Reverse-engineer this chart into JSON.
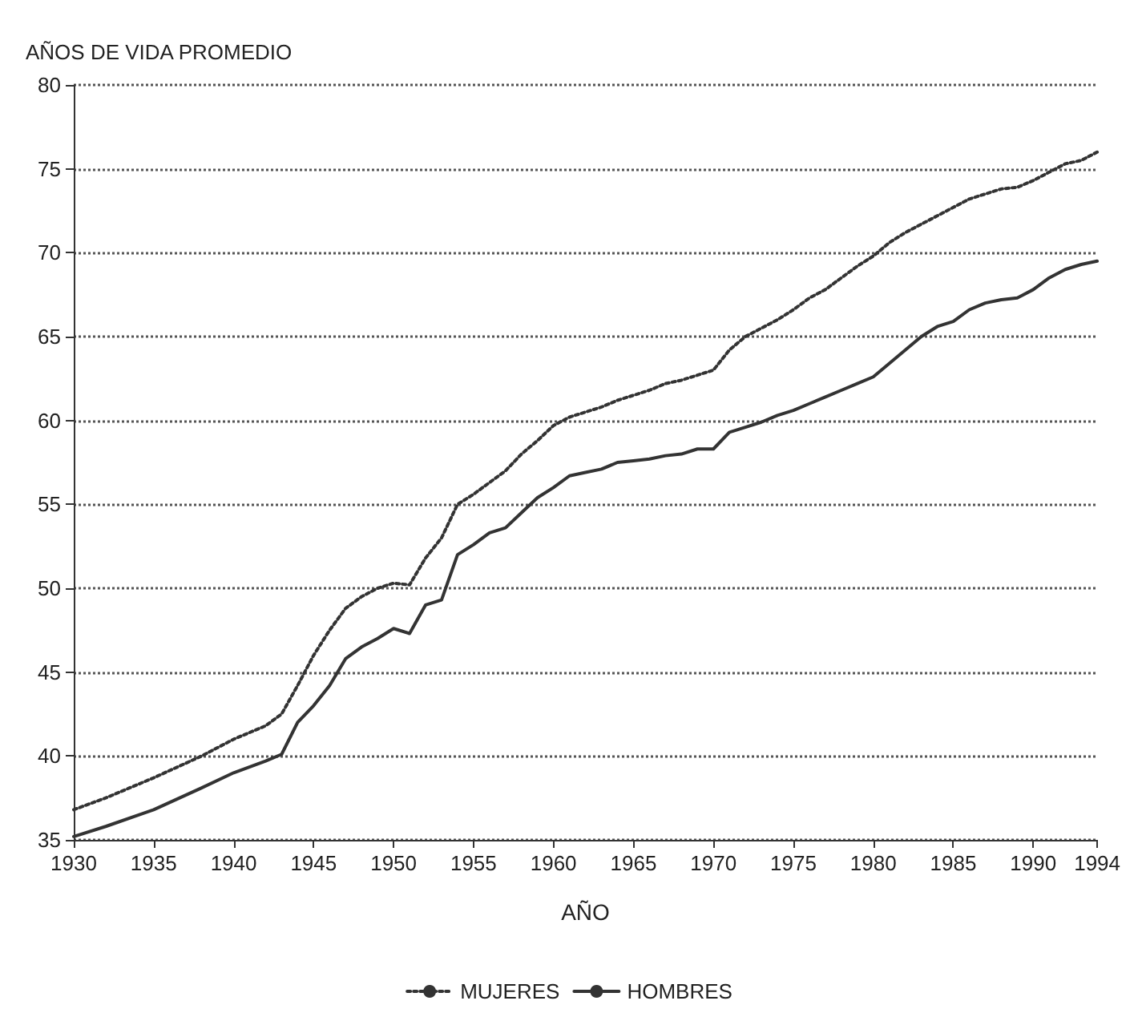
{
  "chart_data": {
    "type": "line",
    "ylabel": "AÑOS DE VIDA PROMEDIO",
    "xlabel": "AÑO",
    "x": [
      1930,
      1932,
      1935,
      1938,
      1940,
      1942,
      1943,
      1944,
      1945,
      1946,
      1947,
      1948,
      1949,
      1950,
      1951,
      1952,
      1953,
      1954,
      1955,
      1956,
      1957,
      1958,
      1959,
      1960,
      1961,
      1962,
      1963,
      1964,
      1965,
      1966,
      1967,
      1968,
      1969,
      1970,
      1971,
      1972,
      1973,
      1974,
      1975,
      1976,
      1977,
      1978,
      1979,
      1980,
      1981,
      1982,
      1983,
      1984,
      1985,
      1986,
      1987,
      1988,
      1989,
      1990,
      1991,
      1992,
      1993,
      1994
    ],
    "series": [
      {
        "name": "MUJERES",
        "color": "#333333",
        "line_style": "dotted",
        "values": [
          36.8,
          37.5,
          38.7,
          40.0,
          41.0,
          41.8,
          42.5,
          44.2,
          46.0,
          47.5,
          48.8,
          49.5,
          50.0,
          50.3,
          50.2,
          51.8,
          53.0,
          55.0,
          55.6,
          56.3,
          57.0,
          58.0,
          58.8,
          59.7,
          60.2,
          60.5,
          60.8,
          61.2,
          61.5,
          61.8,
          62.2,
          62.4,
          62.7,
          63.0,
          64.2,
          65.0,
          65.5,
          66.0,
          66.6,
          67.3,
          67.8,
          68.5,
          69.2,
          69.8,
          70.6,
          71.2,
          71.7,
          72.2,
          72.7,
          73.2,
          73.5,
          73.8,
          73.9,
          74.3,
          74.8,
          75.3,
          75.5,
          76.0
        ]
      },
      {
        "name": "HOMBRES",
        "color": "#333333",
        "line_style": "solid",
        "values": [
          35.2,
          35.8,
          36.8,
          38.1,
          39.0,
          39.7,
          40.1,
          42.0,
          43.0,
          44.2,
          45.8,
          46.5,
          47.0,
          47.6,
          47.3,
          49.0,
          49.3,
          52.0,
          52.6,
          53.3,
          53.6,
          54.5,
          55.4,
          56.0,
          56.7,
          56.9,
          57.1,
          57.5,
          57.6,
          57.7,
          57.9,
          58.0,
          58.3,
          58.3,
          59.3,
          59.6,
          59.9,
          60.3,
          60.6,
          61.0,
          61.4,
          61.8,
          62.2,
          62.6,
          63.4,
          64.2,
          65.0,
          65.6,
          65.9,
          66.6,
          67.0,
          67.2,
          67.3,
          67.8,
          68.5,
          69.0,
          69.3,
          69.5
        ]
      }
    ],
    "xlim": [
      1930,
      1994
    ],
    "xticks": [
      1930,
      1935,
      1940,
      1945,
      1950,
      1955,
      1960,
      1965,
      1970,
      1975,
      1980,
      1985,
      1990,
      1994
    ],
    "ylim": [
      35,
      80
    ],
    "yticks": [
      35,
      40,
      45,
      50,
      55,
      60,
      65,
      70,
      75,
      80
    ],
    "grid": "y",
    "legend": "bottom",
    "marker": "none"
  }
}
